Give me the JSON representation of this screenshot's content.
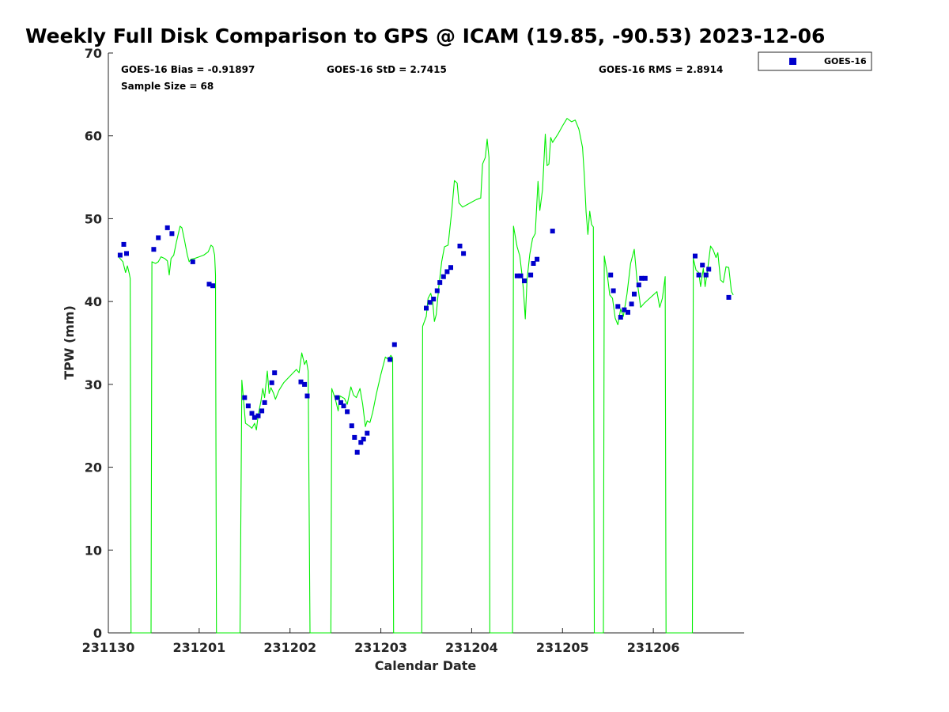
{
  "chart_data": {
    "type": "line",
    "title": "Weekly Full Disk Comparison to GPS @ ICAM (19.85, -90.53) 2023-12-06",
    "xlabel": "Calendar Date",
    "ylabel": "TPW (mm)",
    "xlim": [
      0,
      7
    ],
    "ylim": [
      0,
      70
    ],
    "x_ticks": [
      0,
      1,
      2,
      3,
      4,
      5,
      6
    ],
    "x_tick_labels": [
      "231130",
      "231201",
      "231202",
      "231203",
      "231204",
      "231205",
      "231206"
    ],
    "y_ticks": [
      0,
      10,
      20,
      30,
      40,
      50,
      60,
      70
    ],
    "grid": false,
    "legend_position": "top-right, outside plot",
    "stats": {
      "bias": "GOES-16 Bias = -0.91897",
      "std": "GOES-16 StD = 2.7415",
      "rms": "GOES-16 RMS = 2.8914",
      "sample": "Sample Size = 68"
    },
    "legend": [
      {
        "label": "GOES-16",
        "color": "#0000cc"
      }
    ],
    "colors": {
      "gps": "#00ee00",
      "goes": "#0000cc"
    },
    "gps_line": [
      [
        0.12,
        45.3
      ],
      [
        0.16,
        44.8
      ],
      [
        0.19,
        43.5
      ],
      [
        0.21,
        44.3
      ],
      [
        0.23,
        43.4
      ],
      [
        0.24,
        42.8
      ],
      [
        0.25,
        0
      ],
      [
        0.47,
        0
      ],
      [
        0.48,
        44.8
      ],
      [
        0.52,
        44.6
      ],
      [
        0.55,
        44.8
      ],
      [
        0.58,
        45.4
      ],
      [
        0.62,
        45.2
      ],
      [
        0.65,
        44.9
      ],
      [
        0.67,
        43.2
      ],
      [
        0.69,
        45.2
      ],
      [
        0.72,
        45.6
      ],
      [
        0.75,
        47.2
      ],
      [
        0.79,
        49.1
      ],
      [
        0.81,
        48.9
      ],
      [
        0.84,
        47.3
      ],
      [
        0.87,
        45.6
      ],
      [
        0.89,
        44.8
      ],
      [
        0.91,
        45.1
      ],
      [
        0.95,
        45.2
      ],
      [
        1.0,
        45.4
      ],
      [
        1.05,
        45.6
      ],
      [
        1.1,
        46.0
      ],
      [
        1.13,
        46.8
      ],
      [
        1.15,
        46.6
      ],
      [
        1.17,
        45.6
      ],
      [
        1.18,
        43.2
      ],
      [
        1.19,
        0
      ],
      [
        1.45,
        0
      ],
      [
        1.47,
        30.5
      ],
      [
        1.49,
        28.0
      ],
      [
        1.51,
        25.3
      ],
      [
        1.55,
        25.0
      ],
      [
        1.58,
        24.7
      ],
      [
        1.61,
        25.3
      ],
      [
        1.63,
        24.5
      ],
      [
        1.65,
        26.3
      ],
      [
        1.68,
        28.0
      ],
      [
        1.7,
        29.5
      ],
      [
        1.72,
        28.4
      ],
      [
        1.75,
        31.6
      ],
      [
        1.77,
        28.9
      ],
      [
        1.79,
        29.6
      ],
      [
        1.82,
        28.9
      ],
      [
        1.84,
        28.2
      ],
      [
        1.88,
        29.3
      ],
      [
        1.93,
        30.2
      ],
      [
        2.0,
        31.0
      ],
      [
        2.07,
        31.8
      ],
      [
        2.1,
        31.4
      ],
      [
        2.13,
        33.8
      ],
      [
        2.16,
        32.4
      ],
      [
        2.18,
        32.9
      ],
      [
        2.2,
        31.6
      ],
      [
        2.22,
        0
      ],
      [
        2.45,
        0
      ],
      [
        2.46,
        29.5
      ],
      [
        2.5,
        28.2
      ],
      [
        2.53,
        26.8
      ],
      [
        2.55,
        28.6
      ],
      [
        2.6,
        28.3
      ],
      [
        2.63,
        27.6
      ],
      [
        2.67,
        29.7
      ],
      [
        2.7,
        28.7
      ],
      [
        2.73,
        28.4
      ],
      [
        2.77,
        29.5
      ],
      [
        2.8,
        27.6
      ],
      [
        2.83,
        24.9
      ],
      [
        2.85,
        25.6
      ],
      [
        2.88,
        25.4
      ],
      [
        2.91,
        26.6
      ],
      [
        2.95,
        28.8
      ],
      [
        3.0,
        31.2
      ],
      [
        3.05,
        33.3
      ],
      [
        3.08,
        33.0
      ],
      [
        3.11,
        33.5
      ],
      [
        3.13,
        33.2
      ],
      [
        3.14,
        0
      ],
      [
        3.45,
        0
      ],
      [
        3.46,
        37.0
      ],
      [
        3.5,
        38.2
      ],
      [
        3.52,
        40.4
      ],
      [
        3.55,
        41.0
      ],
      [
        3.57,
        40.1
      ],
      [
        3.59,
        37.6
      ],
      [
        3.61,
        38.4
      ],
      [
        3.64,
        42.0
      ],
      [
        3.67,
        44.8
      ],
      [
        3.7,
        46.6
      ],
      [
        3.74,
        46.8
      ],
      [
        3.78,
        50.9
      ],
      [
        3.81,
        54.6
      ],
      [
        3.84,
        54.3
      ],
      [
        3.86,
        51.9
      ],
      [
        3.9,
        51.4
      ],
      [
        3.95,
        51.7
      ],
      [
        4.0,
        52.0
      ],
      [
        4.05,
        52.3
      ],
      [
        4.1,
        52.5
      ],
      [
        4.12,
        56.6
      ],
      [
        4.15,
        57.4
      ],
      [
        4.17,
        59.6
      ],
      [
        4.19,
        57.4
      ],
      [
        4.2,
        0
      ],
      [
        4.45,
        0
      ],
      [
        4.46,
        49.1
      ],
      [
        4.5,
        46.6
      ],
      [
        4.53,
        45.5
      ],
      [
        4.55,
        43.6
      ],
      [
        4.57,
        41.4
      ],
      [
        4.59,
        37.9
      ],
      [
        4.61,
        42.7
      ],
      [
        4.64,
        45.7
      ],
      [
        4.67,
        47.6
      ],
      [
        4.7,
        48.2
      ],
      [
        4.73,
        54.5
      ],
      [
        4.75,
        51.0
      ],
      [
        4.78,
        53.5
      ],
      [
        4.81,
        60.2
      ],
      [
        4.83,
        56.4
      ],
      [
        4.85,
        56.6
      ],
      [
        4.87,
        59.8
      ],
      [
        4.89,
        59.2
      ],
      [
        4.95,
        60.2
      ],
      [
        5.0,
        61.2
      ],
      [
        5.05,
        62.1
      ],
      [
        5.1,
        61.7
      ],
      [
        5.14,
        61.9
      ],
      [
        5.18,
        60.8
      ],
      [
        5.22,
        58.6
      ],
      [
        5.24,
        55.2
      ],
      [
        5.26,
        50.8
      ],
      [
        5.28,
        48.1
      ],
      [
        5.3,
        50.9
      ],
      [
        5.32,
        49.3
      ],
      [
        5.34,
        49.0
      ],
      [
        5.35,
        0
      ],
      [
        5.45,
        0
      ],
      [
        5.46,
        45.5
      ],
      [
        5.49,
        43.5
      ],
      [
        5.52,
        40.8
      ],
      [
        5.55,
        40.4
      ],
      [
        5.58,
        38.0
      ],
      [
        5.61,
        37.2
      ],
      [
        5.64,
        39.1
      ],
      [
        5.67,
        38.2
      ],
      [
        5.71,
        40.9
      ],
      [
        5.75,
        44.6
      ],
      [
        5.79,
        46.3
      ],
      [
        5.82,
        42.6
      ],
      [
        5.86,
        39.3
      ],
      [
        5.9,
        39.8
      ],
      [
        5.95,
        40.3
      ],
      [
        6.0,
        40.8
      ],
      [
        6.04,
        41.2
      ],
      [
        6.07,
        39.3
      ],
      [
        6.1,
        40.4
      ],
      [
        6.13,
        43.0
      ],
      [
        6.14,
        0
      ],
      [
        6.43,
        0
      ],
      [
        6.44,
        45.2
      ],
      [
        6.47,
        43.8
      ],
      [
        6.5,
        43.5
      ],
      [
        6.52,
        41.8
      ],
      [
        6.55,
        44.0
      ],
      [
        6.57,
        41.8
      ],
      [
        6.6,
        44.1
      ],
      [
        6.63,
        46.7
      ],
      [
        6.66,
        46.2
      ],
      [
        6.69,
        45.3
      ],
      [
        6.71,
        45.9
      ],
      [
        6.74,
        42.6
      ],
      [
        6.77,
        42.3
      ],
      [
        6.8,
        44.2
      ],
      [
        6.83,
        44.1
      ],
      [
        6.86,
        41.2
      ],
      [
        6.88,
        40.8
      ]
    ],
    "goes_points": [
      [
        0.13,
        45.6
      ],
      [
        0.17,
        46.9
      ],
      [
        0.2,
        45.8
      ],
      [
        0.5,
        46.3
      ],
      [
        0.55,
        47.7
      ],
      [
        0.65,
        48.9
      ],
      [
        0.7,
        48.2
      ],
      [
        0.93,
        44.8
      ],
      [
        1.11,
        42.1
      ],
      [
        1.15,
        41.9
      ],
      [
        1.5,
        28.4
      ],
      [
        1.54,
        27.4
      ],
      [
        1.58,
        26.5
      ],
      [
        1.61,
        26.0
      ],
      [
        1.65,
        26.2
      ],
      [
        1.69,
        26.8
      ],
      [
        1.72,
        27.8
      ],
      [
        1.8,
        30.2
      ],
      [
        1.83,
        31.4
      ],
      [
        2.12,
        30.3
      ],
      [
        2.16,
        30.0
      ],
      [
        2.19,
        28.6
      ],
      [
        2.52,
        28.4
      ],
      [
        2.56,
        27.8
      ],
      [
        2.59,
        27.4
      ],
      [
        2.63,
        26.7
      ],
      [
        2.68,
        25.0
      ],
      [
        2.71,
        23.6
      ],
      [
        2.74,
        21.8
      ],
      [
        2.78,
        23.0
      ],
      [
        2.81,
        23.4
      ],
      [
        2.85,
        24.1
      ],
      [
        3.1,
        33.0
      ],
      [
        3.15,
        34.8
      ],
      [
        3.5,
        39.2
      ],
      [
        3.54,
        39.9
      ],
      [
        3.58,
        40.3
      ],
      [
        3.62,
        41.3
      ],
      [
        3.65,
        42.3
      ],
      [
        3.69,
        43.0
      ],
      [
        3.73,
        43.6
      ],
      [
        3.77,
        44.1
      ],
      [
        3.87,
        46.7
      ],
      [
        3.91,
        45.8
      ],
      [
        4.5,
        43.1
      ],
      [
        4.54,
        43.1
      ],
      [
        4.58,
        42.5
      ],
      [
        4.65,
        43.2
      ],
      [
        4.68,
        44.6
      ],
      [
        4.72,
        45.1
      ],
      [
        4.89,
        48.5
      ],
      [
        5.53,
        43.2
      ],
      [
        5.56,
        41.3
      ],
      [
        5.61,
        39.4
      ],
      [
        5.64,
        38.1
      ],
      [
        5.68,
        39.0
      ],
      [
        5.72,
        38.7
      ],
      [
        5.76,
        39.7
      ],
      [
        5.79,
        40.9
      ],
      [
        5.84,
        42.0
      ],
      [
        5.87,
        42.8
      ],
      [
        5.91,
        42.8
      ],
      [
        6.46,
        45.5
      ],
      [
        6.5,
        43.2
      ],
      [
        6.54,
        44.4
      ],
      [
        6.58,
        43.2
      ],
      [
        6.61,
        43.9
      ],
      [
        6.83,
        40.5
      ]
    ]
  }
}
